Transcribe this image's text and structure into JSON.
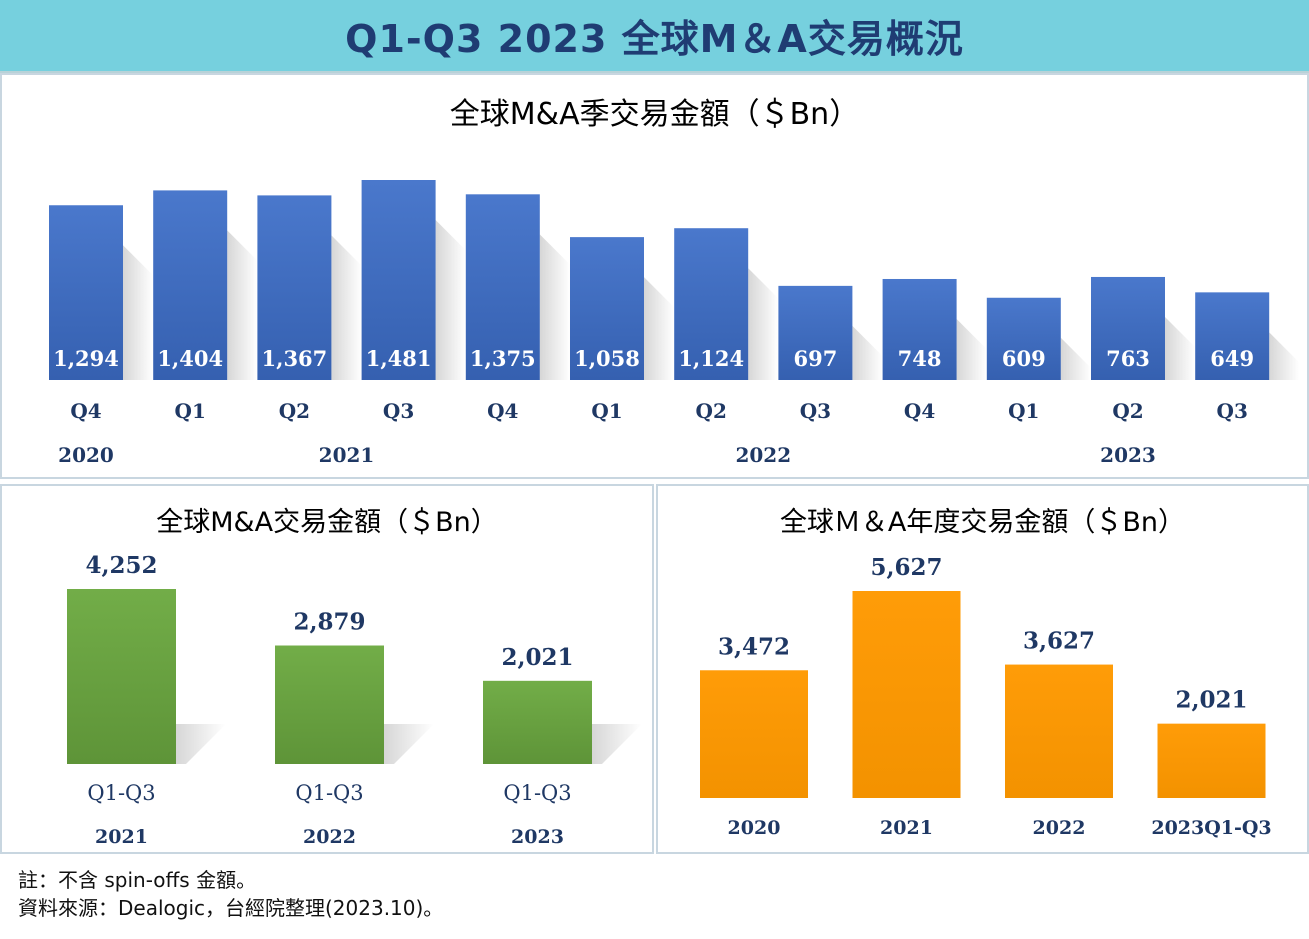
{
  "header": {
    "title": "Q1-Q3 2023 全球M＆A交易概況"
  },
  "chart_data": [
    {
      "type": "bar",
      "title": "全球M&A季交易金額（＄Bn）",
      "categories": [
        "Q4",
        "Q1",
        "Q2",
        "Q3",
        "Q4",
        "Q1",
        "Q2",
        "Q3",
        "Q4",
        "Q1",
        "Q2",
        "Q3"
      ],
      "values": [
        1294,
        1404,
        1367,
        1481,
        1375,
        1058,
        1124,
        697,
        748,
        609,
        763,
        649
      ],
      "value_labels": [
        "1,294",
        "1,404",
        "1,367",
        "1,481",
        "1,375",
        "1,058",
        "1,124",
        "697",
        "748",
        "609",
        "763",
        "649"
      ],
      "year_labels": [
        "2020",
        "2021",
        "2022",
        "2023"
      ],
      "year_spans": [
        [
          0,
          0
        ],
        [
          1,
          4
        ],
        [
          5,
          8
        ],
        [
          9,
          11
        ]
      ],
      "color": "#4472c4",
      "ylim": [
        0,
        1600
      ]
    },
    {
      "type": "bar",
      "title": "全球M&A交易金額（＄Bn）",
      "categories": [
        "Q1-Q3",
        "Q1-Q3",
        "Q1-Q3"
      ],
      "year_labels": [
        "2021",
        "2022",
        "2023"
      ],
      "values": [
        4252,
        2879,
        2021
      ],
      "value_labels": [
        "4,252",
        "2,879",
        "2,021"
      ],
      "color": "#70ad47",
      "ylim": [
        0,
        4600
      ]
    },
    {
      "type": "bar",
      "title": "全球Ｍ＆A年度交易金額（＄Bn）",
      "categories": [
        "2020",
        "2021",
        "2022",
        "2023Q1-Q3"
      ],
      "values": [
        3472,
        5627,
        3627,
        2021
      ],
      "value_labels": [
        "3,472",
        "5,627",
        "3,627",
        "2,021"
      ],
      "color": "#ff9900",
      "ylim": [
        0,
        6000
      ]
    }
  ],
  "notes": {
    "line1": "註：不含 spin-offs 金額。",
    "line2": "資料來源：Dealogic，台經院整理(2023.10)。"
  }
}
